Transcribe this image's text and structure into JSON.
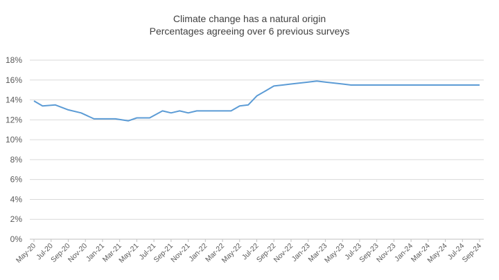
{
  "chart_data": {
    "type": "line",
    "title": "Climate change has a natural origin",
    "subtitle": "Percentages agreeing over 6  previous surveys",
    "xlabel": "",
    "ylabel": "",
    "ylim": [
      0,
      18
    ],
    "yticks": [
      "0%",
      "2%",
      "4%",
      "6%",
      "8%",
      "10%",
      "12%",
      "14%",
      "16%",
      "18%"
    ],
    "grid": true,
    "legend": "none",
    "line_color": "#5b9bd5",
    "categories": [
      "May-20",
      "Jul-20",
      "Sep-20",
      "Nov-20",
      "Jan-21",
      "Mar-21",
      "May-21",
      "Jul-21",
      "Sep-21",
      "Nov-21",
      "Jan-22",
      "Mar-22",
      "May-22",
      "Jul-22",
      "Sep-22",
      "Nov-22",
      "Jan-23",
      "Mar-23",
      "May-23",
      "Jul-23",
      "Sep-23",
      "Nov-23",
      "Jan-24",
      "Mar-24",
      "May-24",
      "Jul-24",
      "Sep-24"
    ],
    "x": [
      0,
      1,
      2.5,
      4,
      5.5,
      7,
      8,
      9.5,
      11,
      12,
      13.5,
      15,
      16,
      17,
      18,
      19,
      20,
      21,
      22,
      23,
      24,
      25,
      26,
      27,
      28,
      29,
      30,
      31,
      32,
      33,
      34,
      35,
      36,
      37,
      38,
      39,
      40,
      42,
      44,
      46,
      48,
      50,
      52
    ],
    "series": [
      {
        "name": "Climate change has a natural origin",
        "x": [
          0,
          1,
          2.5,
          4,
          5.5,
          7,
          8,
          9.5,
          11,
          12,
          13.5,
          15,
          16,
          17,
          18,
          19,
          20,
          21,
          22,
          23,
          24,
          25,
          26,
          27,
          28,
          29,
          30,
          31,
          32,
          33,
          34,
          35,
          36,
          37,
          38,
          39,
          40,
          42,
          44,
          46,
          48,
          50,
          52
        ],
        "values": [
          13.9,
          13.4,
          13.5,
          13.0,
          12.7,
          12.1,
          12.1,
          12.1,
          11.9,
          12.2,
          12.2,
          12.9,
          12.7,
          12.9,
          12.7,
          12.9,
          12.9,
          12.9,
          12.9,
          12.9,
          13.4,
          13.5,
          14.4,
          14.9,
          15.4,
          15.5,
          15.6,
          15.7,
          15.8,
          15.9,
          15.8,
          15.7,
          15.6,
          15.5,
          15.5,
          15.5,
          15.5,
          15.5,
          15.5,
          15.5,
          15.5,
          15.5,
          15.5
        ]
      }
    ]
  }
}
